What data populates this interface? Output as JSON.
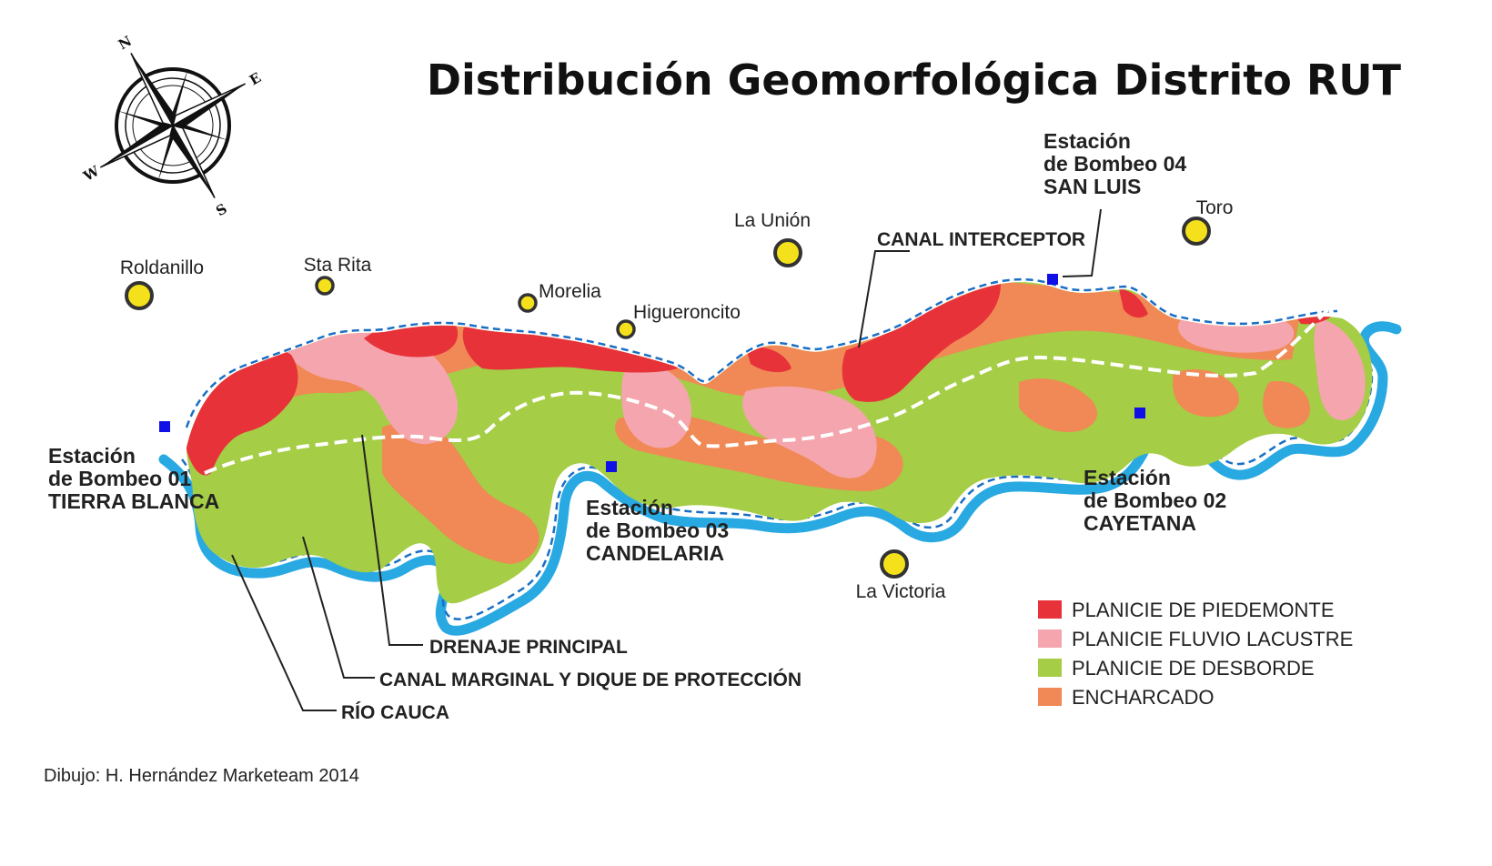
{
  "title": "Distribución Geomorfológica Distrito RUT",
  "compass": {
    "icon": "compass-rose-icon",
    "labels": {
      "north": "N",
      "south": "S",
      "east": "E",
      "west": "W"
    }
  },
  "towns": [
    {
      "id": "roldanillo",
      "name": "Roldanillo"
    },
    {
      "id": "sta-rita",
      "name": "Sta Rita"
    },
    {
      "id": "morelia",
      "name": "Morelia"
    },
    {
      "id": "higueroncito",
      "name": "Higueroncito"
    },
    {
      "id": "la-union",
      "name": "La Unión"
    },
    {
      "id": "toro",
      "name": "Toro"
    },
    {
      "id": "la-victoria",
      "name": "La Victoria"
    }
  ],
  "stations": [
    {
      "id": "01",
      "lines": [
        "Estación",
        "de Bombeo 01",
        "TIERRA BLANCA"
      ]
    },
    {
      "id": "02",
      "lines": [
        "Estación",
        "de Bombeo 02",
        "CAYETANA"
      ]
    },
    {
      "id": "03",
      "lines": [
        "Estación",
        "de Bombeo 03",
        "CANDELARIA"
      ]
    },
    {
      "id": "04",
      "lines": [
        "Estación",
        "de Bombeo 04",
        "SAN LUIS"
      ]
    }
  ],
  "callouts": {
    "canal_interceptor": "CANAL INTERCEPTOR",
    "drenaje_principal": "DRENAJE PRINCIPAL",
    "canal_marginal": "CANAL MARGINAL Y DIQUE DE PROTECCIÓN",
    "rio_cauca": "RÍO CAUCA"
  },
  "legend": [
    {
      "label": "PLANICIE DE PIEDEMONTE",
      "color": "#e8323a"
    },
    {
      "label": "PLANICIE FLUVIO LACUSTRE",
      "color": "#f4a5ad"
    },
    {
      "label": "PLANICIE DE DESBORDE",
      "color": "#a5cd45"
    },
    {
      "label": "ENCHARCADO",
      "color": "#f08955"
    }
  ],
  "colors": {
    "river": "#29a9e1",
    "canal_dash": "#1a6fc4",
    "drain": "#ffffff",
    "station_marker": "#1010e6",
    "town_marker": "#f4e11c"
  },
  "credit": "Dibujo: H. Hernández Marketeam 2014"
}
